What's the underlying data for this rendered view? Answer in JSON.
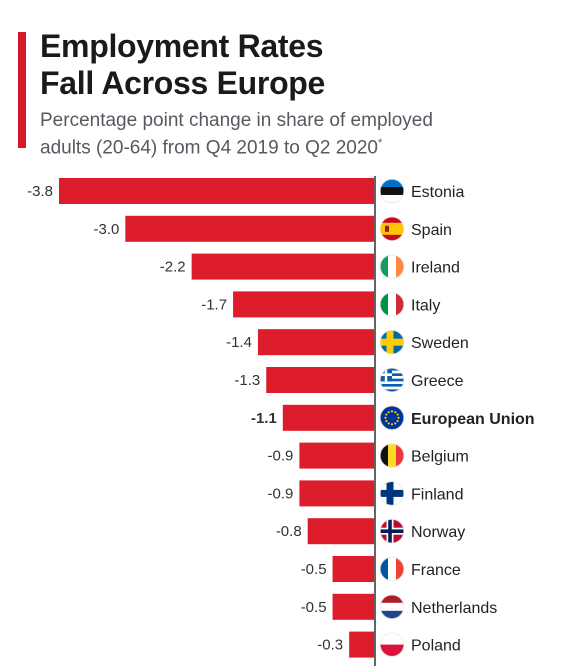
{
  "header": {
    "title_line1": "Employment Rates",
    "title_line2": "Fall Across Europe",
    "subtitle_line1": "Percentage point change in share of employed",
    "subtitle_line2": "adults (20-64) from Q4 2019 to Q2 2020",
    "subtitle_footnote_mark": "*"
  },
  "colors": {
    "accent": "#d7182a",
    "bar": "#dd1c2c",
    "baseline": "#222222",
    "value_text": "#333333",
    "label_text": "#222222"
  },
  "chart_data": {
    "type": "bar",
    "orientation": "horizontal",
    "categories": [
      "Estonia",
      "Spain",
      "Ireland",
      "Italy",
      "Sweden",
      "Greece",
      "European Union",
      "Belgium",
      "Finland",
      "Norway",
      "France",
      "Netherlands",
      "Poland"
    ],
    "values": [
      -3.8,
      -3.0,
      -2.2,
      -1.7,
      -1.4,
      -1.3,
      -1.1,
      -0.9,
      -0.9,
      -0.8,
      -0.5,
      -0.5,
      -0.3
    ],
    "value_labels": [
      "-3.8",
      "-3.0",
      "-2.2",
      "-1.7",
      "-1.4",
      "-1.3",
      "-1.1",
      "-0.9",
      "-0.9",
      "-0.8",
      "-0.5",
      "-0.5",
      "-0.3"
    ],
    "highlight_category": "European Union",
    "flags": [
      "estonia-flag-icon",
      "spain-flag-icon",
      "ireland-flag-icon",
      "italy-flag-icon",
      "sweden-flag-icon",
      "greece-flag-icon",
      "eu-flag-icon",
      "belgium-flag-icon",
      "finland-flag-icon",
      "norway-flag-icon",
      "france-flag-icon",
      "netherlands-flag-icon",
      "poland-flag-icon"
    ],
    "xlim": [
      -3.8,
      0
    ],
    "grid": false,
    "title": "Employment Rates Fall Across Europe",
    "xlabel": "",
    "ylabel": ""
  }
}
